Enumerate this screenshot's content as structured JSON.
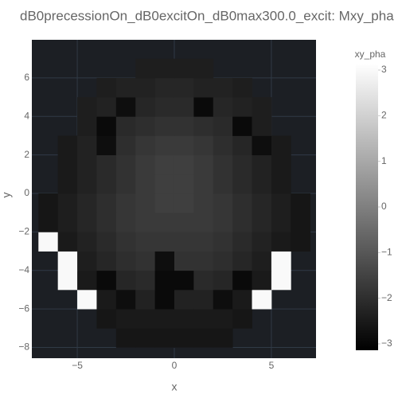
{
  "chart_data": {
    "type": "heatmap",
    "title": "dB0precessionOn_dB0excitOn_dB0max300.0_excit: Mxy_pha",
    "x_label": "x",
    "y_label": "y",
    "colorbar_title": "xy_pha",
    "x": [
      -6.5,
      -5.5,
      -4.5,
      -3.5,
      -2.5,
      -1.5,
      -0.5,
      0.5,
      1.5,
      2.5,
      3.5,
      4.5,
      5.5,
      6.5
    ],
    "y": [
      -7.5,
      -6.5,
      -5.5,
      -4.5,
      -3.5,
      -2.5,
      -1.5,
      -0.5,
      0.5,
      1.5,
      2.5,
      3.5,
      4.5,
      5.5,
      6.5
    ],
    "z": [
      [
        null,
        null,
        null,
        null,
        -2.6,
        -2.6,
        -2.6,
        -2.6,
        -2.6,
        -2.6,
        null,
        null,
        null,
        null
      ],
      [
        null,
        null,
        null,
        -2.6,
        -2.5,
        -2.5,
        -2.5,
        -2.5,
        -2.5,
        -2.5,
        -2.6,
        null,
        null,
        null
      ],
      [
        null,
        null,
        3,
        -2.5,
        -2.8,
        -2.3,
        -2.9,
        -2.3,
        -2.3,
        -2.8,
        -2.5,
        3,
        null,
        null
      ],
      [
        null,
        3,
        -2.5,
        -2.9,
        -2.2,
        -2.1,
        -2.9,
        -2.9,
        -2.1,
        -2.2,
        -2.9,
        -2.5,
        3,
        null
      ],
      [
        null,
        3,
        -2.4,
        -2.2,
        -2.0,
        -1.9,
        -2.8,
        -1.9,
        -1.9,
        -2.0,
        -2.2,
        -2.4,
        3,
        null
      ],
      [
        3,
        -2.5,
        -2.3,
        -2.1,
        -1.9,
        -1.8,
        -1.8,
        -1.8,
        -1.8,
        -1.9,
        -2.1,
        -2.3,
        -2.5,
        -2.6
      ],
      [
        -2.6,
        -2.4,
        -2.2,
        -2.0,
        -1.8,
        -1.7,
        -1.7,
        -1.7,
        -1.7,
        -1.8,
        -2.0,
        -2.2,
        -2.4,
        -2.6
      ],
      [
        -2.6,
        -2.4,
        -2.2,
        -2.0,
        -1.8,
        -1.7,
        -1.6,
        -1.6,
        -1.7,
        -1.8,
        -2.0,
        -2.2,
        -2.4,
        -2.6
      ],
      [
        null,
        -2.5,
        -2.3,
        -2.1,
        -1.9,
        -1.7,
        -1.6,
        -1.6,
        -1.7,
        -1.9,
        -2.1,
        -2.3,
        -2.5,
        null
      ],
      [
        null,
        -2.5,
        -2.3,
        -2.1,
        -1.9,
        -1.7,
        -1.6,
        -1.6,
        -1.7,
        -1.9,
        -2.1,
        -2.3,
        -2.5,
        null
      ],
      [
        null,
        -2.5,
        -2.3,
        -2.8,
        -2.0,
        -1.8,
        -1.7,
        -1.7,
        -1.8,
        -2.0,
        -2.2,
        -2.8,
        -2.5,
        null
      ],
      [
        null,
        null,
        -2.4,
        -2.9,
        -2.1,
        -2.0,
        -1.9,
        -1.9,
        -2.0,
        -2.1,
        -2.9,
        -2.4,
        null,
        null
      ],
      [
        null,
        null,
        -2.4,
        -2.3,
        -2.8,
        -2.2,
        -2.1,
        -2.1,
        -2.9,
        -2.2,
        -2.3,
        -2.4,
        null,
        null
      ],
      [
        null,
        null,
        null,
        -2.4,
        -2.3,
        -2.3,
        -2.2,
        -2.2,
        -2.3,
        -2.3,
        -2.4,
        null,
        null,
        null
      ],
      [
        null,
        null,
        null,
        null,
        null,
        -2.4,
        -2.4,
        -2.4,
        -2.4,
        null,
        null,
        null,
        null,
        null
      ]
    ],
    "colorscale": [
      [
        0,
        "#000000"
      ],
      [
        1,
        "#ffffff"
      ]
    ],
    "zlim": [
      -3.14,
      3.14
    ],
    "zticks": [
      {
        "value": -3,
        "label": "−3"
      },
      {
        "value": -2,
        "label": "−2"
      },
      {
        "value": -1,
        "label": "−1"
      },
      0,
      1,
      2,
      3
    ],
    "xlim": [
      -7.34,
      7.3
    ],
    "ylim": [
      -8.56,
      7.98
    ],
    "xticks": [
      {
        "value": -5,
        "label": "−5"
      },
      0,
      5
    ],
    "yticks": [
      {
        "value": -8,
        "label": "−8"
      },
      {
        "value": -6,
        "label": "−6"
      },
      {
        "value": -4,
        "label": "−4"
      },
      {
        "value": -2,
        "label": "−2"
      },
      0,
      2,
      4,
      6
    ],
    "grid": true,
    "plot_bgcolor": "#1c1f24",
    "grid_color": "#303a46"
  }
}
